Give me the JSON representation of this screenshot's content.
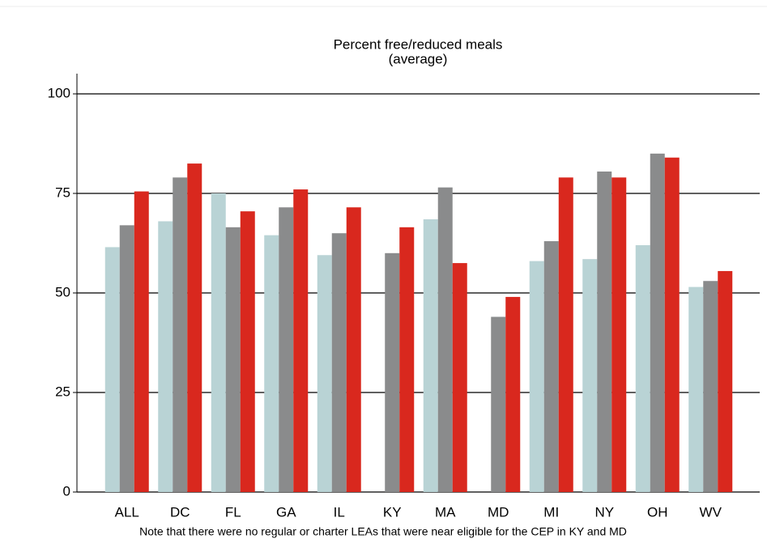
{
  "chart_data": {
    "type": "bar",
    "title": "Percent free/reduced meals",
    "subtitle": "(average)",
    "note": "Note that there were no regular or charter LEAs that were near eligible for the CEP in KY and MD",
    "categories": [
      "ALL",
      "DC",
      "FL",
      "GA",
      "IL",
      "KY",
      "MA",
      "MD",
      "MI",
      "NY",
      "OH",
      "WV"
    ],
    "series": [
      {
        "color": "#b9d3d5",
        "values": [
          61.5,
          68,
          75,
          64.5,
          59.5,
          null,
          68.5,
          null,
          58,
          58.5,
          62,
          51.5
        ]
      },
      {
        "color": "#8a8b8c",
        "values": [
          67,
          79,
          66.5,
          71.5,
          65,
          60,
          76.5,
          44,
          63,
          80.5,
          85,
          53
        ]
      },
      {
        "color": "#d9281e",
        "values": [
          75.5,
          82.5,
          70.5,
          76,
          71.5,
          66.5,
          57.5,
          49,
          79,
          79,
          84,
          55.5
        ]
      }
    ],
    "ylim": [
      0,
      100
    ],
    "yticks": [
      0,
      25,
      50,
      75,
      100
    ],
    "grid": true
  }
}
